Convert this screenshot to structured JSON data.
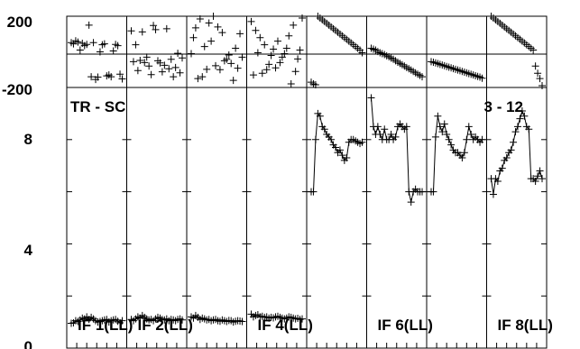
{
  "chart_data": {
    "type": "line",
    "title": "TR - SC",
    "corner_label": "3 - 12",
    "top_panel": {
      "ylim": [
        -200,
        200
      ],
      "y_ticks": [
        "200",
        "-200"
      ]
    },
    "main_panel": {
      "ylim": [
        0,
        10
      ],
      "y_ticks": [
        "8",
        "4",
        "0"
      ]
    },
    "panels": [
      {
        "label": "IF 1(LL)",
        "phase": [
          52,
          45,
          62,
          55,
          10,
          48,
          35,
          42,
          150,
          -140,
          52,
          -155,
          -142,
          0,
          40,
          45,
          -135,
          -130,
          -140,
          5,
          42,
          35,
          -125,
          -152
        ],
        "amp": [
          0.95,
          0.97,
          1.05,
          1.02,
          1.08,
          1.15,
          1.12,
          1.2,
          1.1,
          1.18,
          1.12,
          1.05,
          1.0,
          1.02,
          1.05,
          1.08,
          1.1,
          1.0,
          1.05,
          1.08,
          1.1,
          1.03,
          0.97,
          1.05
        ]
      },
      {
        "label": "IF 2(LL)",
        "phase": [
          118,
          -55,
          40,
          -105,
          -48,
          112,
          -60,
          -30,
          -80,
          -128,
          148,
          125,
          -50,
          -62,
          -112,
          -75,
          130,
          -95,
          -42,
          -140,
          -88,
          -8,
          -118,
          -34
        ],
        "amp": [
          1.1,
          1.05,
          1.12,
          1.2,
          1.15,
          1.25,
          1.18,
          1.12,
          1.08,
          1.1,
          1.05,
          1.12,
          1.18,
          1.15,
          1.1,
          1.08,
          1.12,
          1.05,
          1.1,
          1.08,
          1.05,
          1.1,
          1.12,
          1.08
        ]
      },
      {
        "label": "",
        "phase": [
          -10,
          80,
          135,
          -150,
          185,
          -140,
          30,
          -98,
          162,
          60,
          200,
          -78,
          140,
          -100,
          108,
          -50,
          -42,
          -18,
          -65,
          -160,
          20,
          -92,
          102,
          -30
        ],
        "amp": [
          1.2,
          1.15,
          1.25,
          1.18,
          1.1,
          1.15,
          1.12,
          1.08,
          1.1,
          1.05,
          1.08,
          1.1,
          1.05,
          1.03,
          1.08,
          1.05,
          1.02,
          1.06,
          1.05,
          1.0,
          1.03,
          1.05,
          1.04,
          1.02
        ]
      },
      {
        "label": "IF 4(LL)",
        "phase": [
          170,
          -130,
          120,
          -5,
          80,
          -120,
          40,
          -100,
          -70,
          -20,
          15,
          -90,
          60,
          -60,
          -30,
          -10,
          20,
          90,
          -180,
          150,
          -110,
          -40,
          10,
          190
        ],
        "amp": [
          1.3,
          1.2,
          1.25,
          1.28,
          1.2,
          1.22,
          1.18,
          1.2,
          1.15,
          1.18,
          1.16,
          1.2,
          1.22,
          1.18,
          1.15,
          1.12,
          1.15,
          1.2,
          1.18,
          1.15,
          1.12,
          1.14,
          1.1,
          1.12
        ]
      },
      {
        "label": "",
        "phase": [
          -170,
          -180,
          -185,
          200,
          190,
          180,
          170,
          160,
          150,
          140,
          130,
          120,
          110,
          100,
          90,
          80,
          70,
          60,
          50,
          40,
          30,
          20,
          10,
          -5
        ],
        "amp": [
          6.0,
          6.0,
          8.0,
          9.0,
          8.9,
          8.5,
          8.4,
          8.2,
          8.1,
          8.0,
          7.8,
          7.7,
          7.5,
          7.6,
          7.4,
          7.2,
          7.3,
          7.9,
          8.0,
          8.0,
          7.95,
          7.9,
          7.85,
          7.9
        ]
      },
      {
        "label": "IF 6(LL)",
        "phase": [
          20,
          15,
          10,
          2,
          -5,
          -10,
          -15,
          -22,
          -28,
          -35,
          -42,
          -50,
          -58,
          -65,
          -72,
          -80,
          -88,
          -95,
          -102,
          -110,
          -118,
          -125,
          -132,
          -140
        ],
        "amp": [
          9.6,
          8.5,
          8.2,
          8.5,
          8.2,
          8.0,
          8.4,
          8.0,
          8.0,
          8.2,
          8.0,
          8.1,
          8.5,
          8.6,
          8.5,
          8.4,
          8.5,
          6.0,
          5.6,
          6.0,
          6.1,
          6.0,
          6.0,
          6.0
        ]
      },
      {
        "label": "",
        "phase": [
          -55,
          -58,
          -62,
          -66,
          -70,
          -74,
          -78,
          -82,
          -86,
          -90,
          -94,
          -98,
          -102,
          -106,
          -110,
          -114,
          -118,
          -122,
          -126,
          -130,
          -134,
          -138,
          -142,
          -148
        ],
        "amp": [
          6.0,
          6.0,
          8.1,
          8.9,
          8.5,
          8.3,
          8.6,
          8.2,
          8.0,
          7.8,
          7.6,
          7.5,
          7.5,
          7.4,
          7.3,
          7.5,
          8.0,
          8.5,
          8.2,
          8.0,
          8.1,
          8.0,
          7.9,
          8.0
        ]
      },
      {
        "label": "IF 8(LL)",
        "phase": [
          200,
          190,
          180,
          170,
          160,
          150,
          140,
          130,
          120,
          110,
          100,
          90,
          80,
          70,
          60,
          50,
          40,
          30,
          20,
          10,
          -80,
          -120,
          -150,
          -190
        ],
        "amp": [
          6.5,
          5.9,
          6.5,
          6.4,
          6.8,
          6.9,
          7.2,
          7.3,
          7.5,
          7.6,
          7.9,
          8.3,
          8.5,
          8.8,
          9.1,
          8.9,
          8.5,
          8.4,
          6.5,
          6.5,
          6.4,
          6.6,
          6.8,
          6.5
        ]
      }
    ]
  }
}
